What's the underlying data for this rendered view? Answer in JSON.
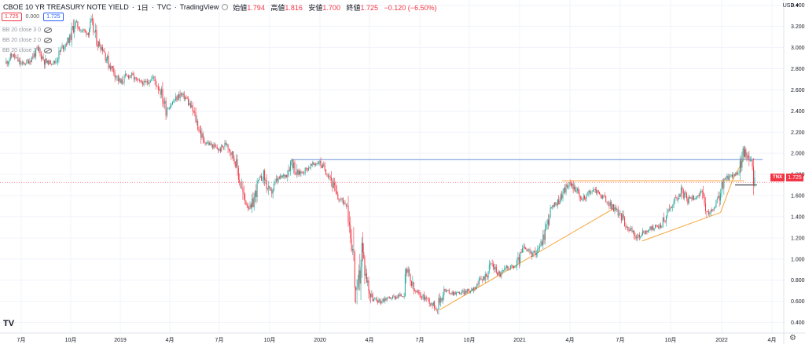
{
  "header": {
    "symbol_title": "CBOE 10 YR TREASURY NOTE YIELD",
    "interval": "1日",
    "source": "TVC",
    "platform": "TradingView",
    "ohlc": [
      {
        "label": "始値",
        "value": "1.794"
      },
      {
        "label": "高値",
        "value": "1.816"
      },
      {
        "label": "安値",
        "value": "1.700"
      },
      {
        "label": "終値",
        "value": "1.725"
      }
    ],
    "change": "−0.120 (−6.50%)"
  },
  "quote_row": {
    "sell": "1.725",
    "spread": "0.000",
    "buy": "1.725"
  },
  "indicators": [
    {
      "label": "BB 20 close 3 0"
    },
    {
      "label": "BB 20 close 2 0"
    },
    {
      "label": "BB 20 close 1 0"
    }
  ],
  "currency": "USD",
  "current_price": {
    "ticker": "TNX",
    "value": "1.725"
  },
  "colors": {
    "up": "#26a69a",
    "down": "#f23645",
    "trend": "#f7a539",
    "horizontal": "#6b8fd6"
  },
  "icons": [
    "tradingview-logo-icon",
    "gear-icon",
    "eye-off-icon"
  ],
  "chart_data": {
    "type": "candlestick",
    "y_ticks": [
      "3.400",
      "3.200",
      "3.000",
      "2.800",
      "2.600",
      "2.400",
      "2.200",
      "2.000",
      "1.800",
      "1.600",
      "1.400",
      "1.200",
      "1.000",
      "0.800",
      "0.600",
      "0.400"
    ],
    "x_ticks": [
      "7月",
      "10月",
      "2019",
      "4月",
      "7月",
      "10月",
      "2020",
      "4月",
      "7月",
      "10月",
      "2021",
      "4月",
      "7月",
      "10月",
      "2022",
      "4月"
    ],
    "ylim": [
      0.3,
      3.45
    ],
    "grid": true,
    "series": [
      {
        "values": [
          [
            "2018-06-01",
            2.85
          ],
          [
            "2018-06-15",
            2.93
          ],
          [
            "2018-07-01",
            2.84
          ],
          [
            "2018-07-15",
            2.87
          ],
          [
            "2018-08-01",
            2.98
          ],
          [
            "2018-08-15",
            2.86
          ],
          [
            "2018-09-01",
            2.86
          ],
          [
            "2018-09-15",
            3.0
          ],
          [
            "2018-10-01",
            3.1
          ],
          [
            "2018-10-08",
            3.24
          ],
          [
            "2018-10-20",
            3.17
          ],
          [
            "2018-11-01",
            3.14
          ],
          [
            "2018-11-08",
            3.23
          ],
          [
            "2018-11-20",
            3.05
          ],
          [
            "2018-12-01",
            2.98
          ],
          [
            "2018-12-10",
            2.85
          ],
          [
            "2018-12-20",
            2.78
          ],
          [
            "2019-01-01",
            2.66
          ],
          [
            "2019-01-10",
            2.72
          ],
          [
            "2019-01-20",
            2.74
          ],
          [
            "2019-02-01",
            2.68
          ],
          [
            "2019-02-15",
            2.66
          ],
          [
            "2019-03-01",
            2.72
          ],
          [
            "2019-03-15",
            2.59
          ],
          [
            "2019-03-25",
            2.42
          ],
          [
            "2019-04-10",
            2.5
          ],
          [
            "2019-04-20",
            2.56
          ],
          [
            "2019-05-01",
            2.52
          ],
          [
            "2019-05-15",
            2.38
          ],
          [
            "2019-06-01",
            2.12
          ],
          [
            "2019-06-15",
            2.08
          ],
          [
            "2019-07-01",
            2.03
          ],
          [
            "2019-07-15",
            2.1
          ],
          [
            "2019-08-01",
            1.9
          ],
          [
            "2019-08-15",
            1.56
          ],
          [
            "2019-08-28",
            1.47
          ],
          [
            "2019-09-10",
            1.72
          ],
          [
            "2019-09-20",
            1.8
          ],
          [
            "2019-10-01",
            1.6
          ],
          [
            "2019-10-15",
            1.75
          ],
          [
            "2019-11-01",
            1.8
          ],
          [
            "2019-11-10",
            1.94
          ],
          [
            "2019-11-20",
            1.8
          ],
          [
            "2019-12-01",
            1.83
          ],
          [
            "2019-12-15",
            1.88
          ],
          [
            "2019-12-30",
            1.92
          ],
          [
            "2020-01-08",
            1.86
          ],
          [
            "2020-01-20",
            1.78
          ],
          [
            "2020-02-01",
            1.58
          ],
          [
            "2020-02-20",
            1.52
          ],
          [
            "2020-03-01",
            1.1
          ],
          [
            "2020-03-09",
            0.54
          ],
          [
            "2020-03-18",
            1.1
          ],
          [
            "2020-03-25",
            0.85
          ],
          [
            "2020-04-05",
            0.62
          ],
          [
            "2020-04-20",
            0.6
          ],
          [
            "2020-05-01",
            0.63
          ],
          [
            "2020-05-15",
            0.64
          ],
          [
            "2020-06-01",
            0.66
          ],
          [
            "2020-06-08",
            0.88
          ],
          [
            "2020-06-20",
            0.7
          ],
          [
            "2020-07-01",
            0.66
          ],
          [
            "2020-07-15",
            0.62
          ],
          [
            "2020-08-01",
            0.54
          ],
          [
            "2020-08-15",
            0.7
          ],
          [
            "2020-09-01",
            0.68
          ],
          [
            "2020-09-15",
            0.68
          ],
          [
            "2020-10-01",
            0.7
          ],
          [
            "2020-10-15",
            0.76
          ],
          [
            "2020-11-01",
            0.85
          ],
          [
            "2020-11-10",
            0.96
          ],
          [
            "2020-11-25",
            0.85
          ],
          [
            "2020-12-10",
            0.92
          ],
          [
            "2020-12-25",
            0.93
          ],
          [
            "2021-01-08",
            1.1
          ],
          [
            "2021-01-25",
            1.04
          ],
          [
            "2021-02-10",
            1.16
          ],
          [
            "2021-02-25",
            1.46
          ],
          [
            "2021-03-10",
            1.54
          ],
          [
            "2021-03-25",
            1.68
          ],
          [
            "2021-04-05",
            1.72
          ],
          [
            "2021-04-20",
            1.56
          ],
          [
            "2021-05-01",
            1.6
          ],
          [
            "2021-05-15",
            1.66
          ],
          [
            "2021-06-01",
            1.58
          ],
          [
            "2021-06-15",
            1.5
          ],
          [
            "2021-07-01",
            1.42
          ],
          [
            "2021-07-15",
            1.3
          ],
          [
            "2021-08-01",
            1.2
          ],
          [
            "2021-08-15",
            1.26
          ],
          [
            "2021-09-01",
            1.3
          ],
          [
            "2021-09-15",
            1.32
          ],
          [
            "2021-10-01",
            1.5
          ],
          [
            "2021-10-20",
            1.64
          ],
          [
            "2021-11-01",
            1.56
          ],
          [
            "2021-11-10",
            1.58
          ],
          [
            "2021-11-25",
            1.62
          ],
          [
            "2021-12-05",
            1.42
          ],
          [
            "2021-12-20",
            1.48
          ],
          [
            "2022-01-05",
            1.74
          ],
          [
            "2022-01-20",
            1.8
          ],
          [
            "2022-02-01",
            1.82
          ],
          [
            "2022-02-10",
            2.03
          ],
          [
            "2022-02-15",
            1.98
          ],
          [
            "2022-02-25",
            1.86
          ],
          [
            "2022-03-01",
            1.73
          ]
        ]
      }
    ],
    "annotations": [
      {
        "type": "horizontal",
        "y": 1.94,
        "x0": "2019-11-10",
        "x1": "2022-03-15"
      },
      {
        "type": "horizontal",
        "y": 1.74,
        "x0": "2021-03-18",
        "x1": "2022-02-10"
      },
      {
        "type": "trend",
        "x0": "2020-08-07",
        "y0": 0.52,
        "x1": "2021-06-20",
        "y1": 1.48
      },
      {
        "type": "trend",
        "x0": "2021-08-10",
        "y0": 1.17,
        "x1": "2021-12-30",
        "y1": 1.44
      },
      {
        "type": "trend",
        "x0": "2021-12-30",
        "y0": 1.44,
        "x1": "2022-01-20",
        "y1": 1.74
      },
      {
        "type": "trend",
        "x0": "2022-01-20",
        "y0": 1.74,
        "x1": "2022-02-10",
        "y1": 1.95
      },
      {
        "type": "horizontal_dark",
        "y": 1.7,
        "x0": "2022-01-25",
        "x1": "2022-03-05"
      }
    ]
  }
}
